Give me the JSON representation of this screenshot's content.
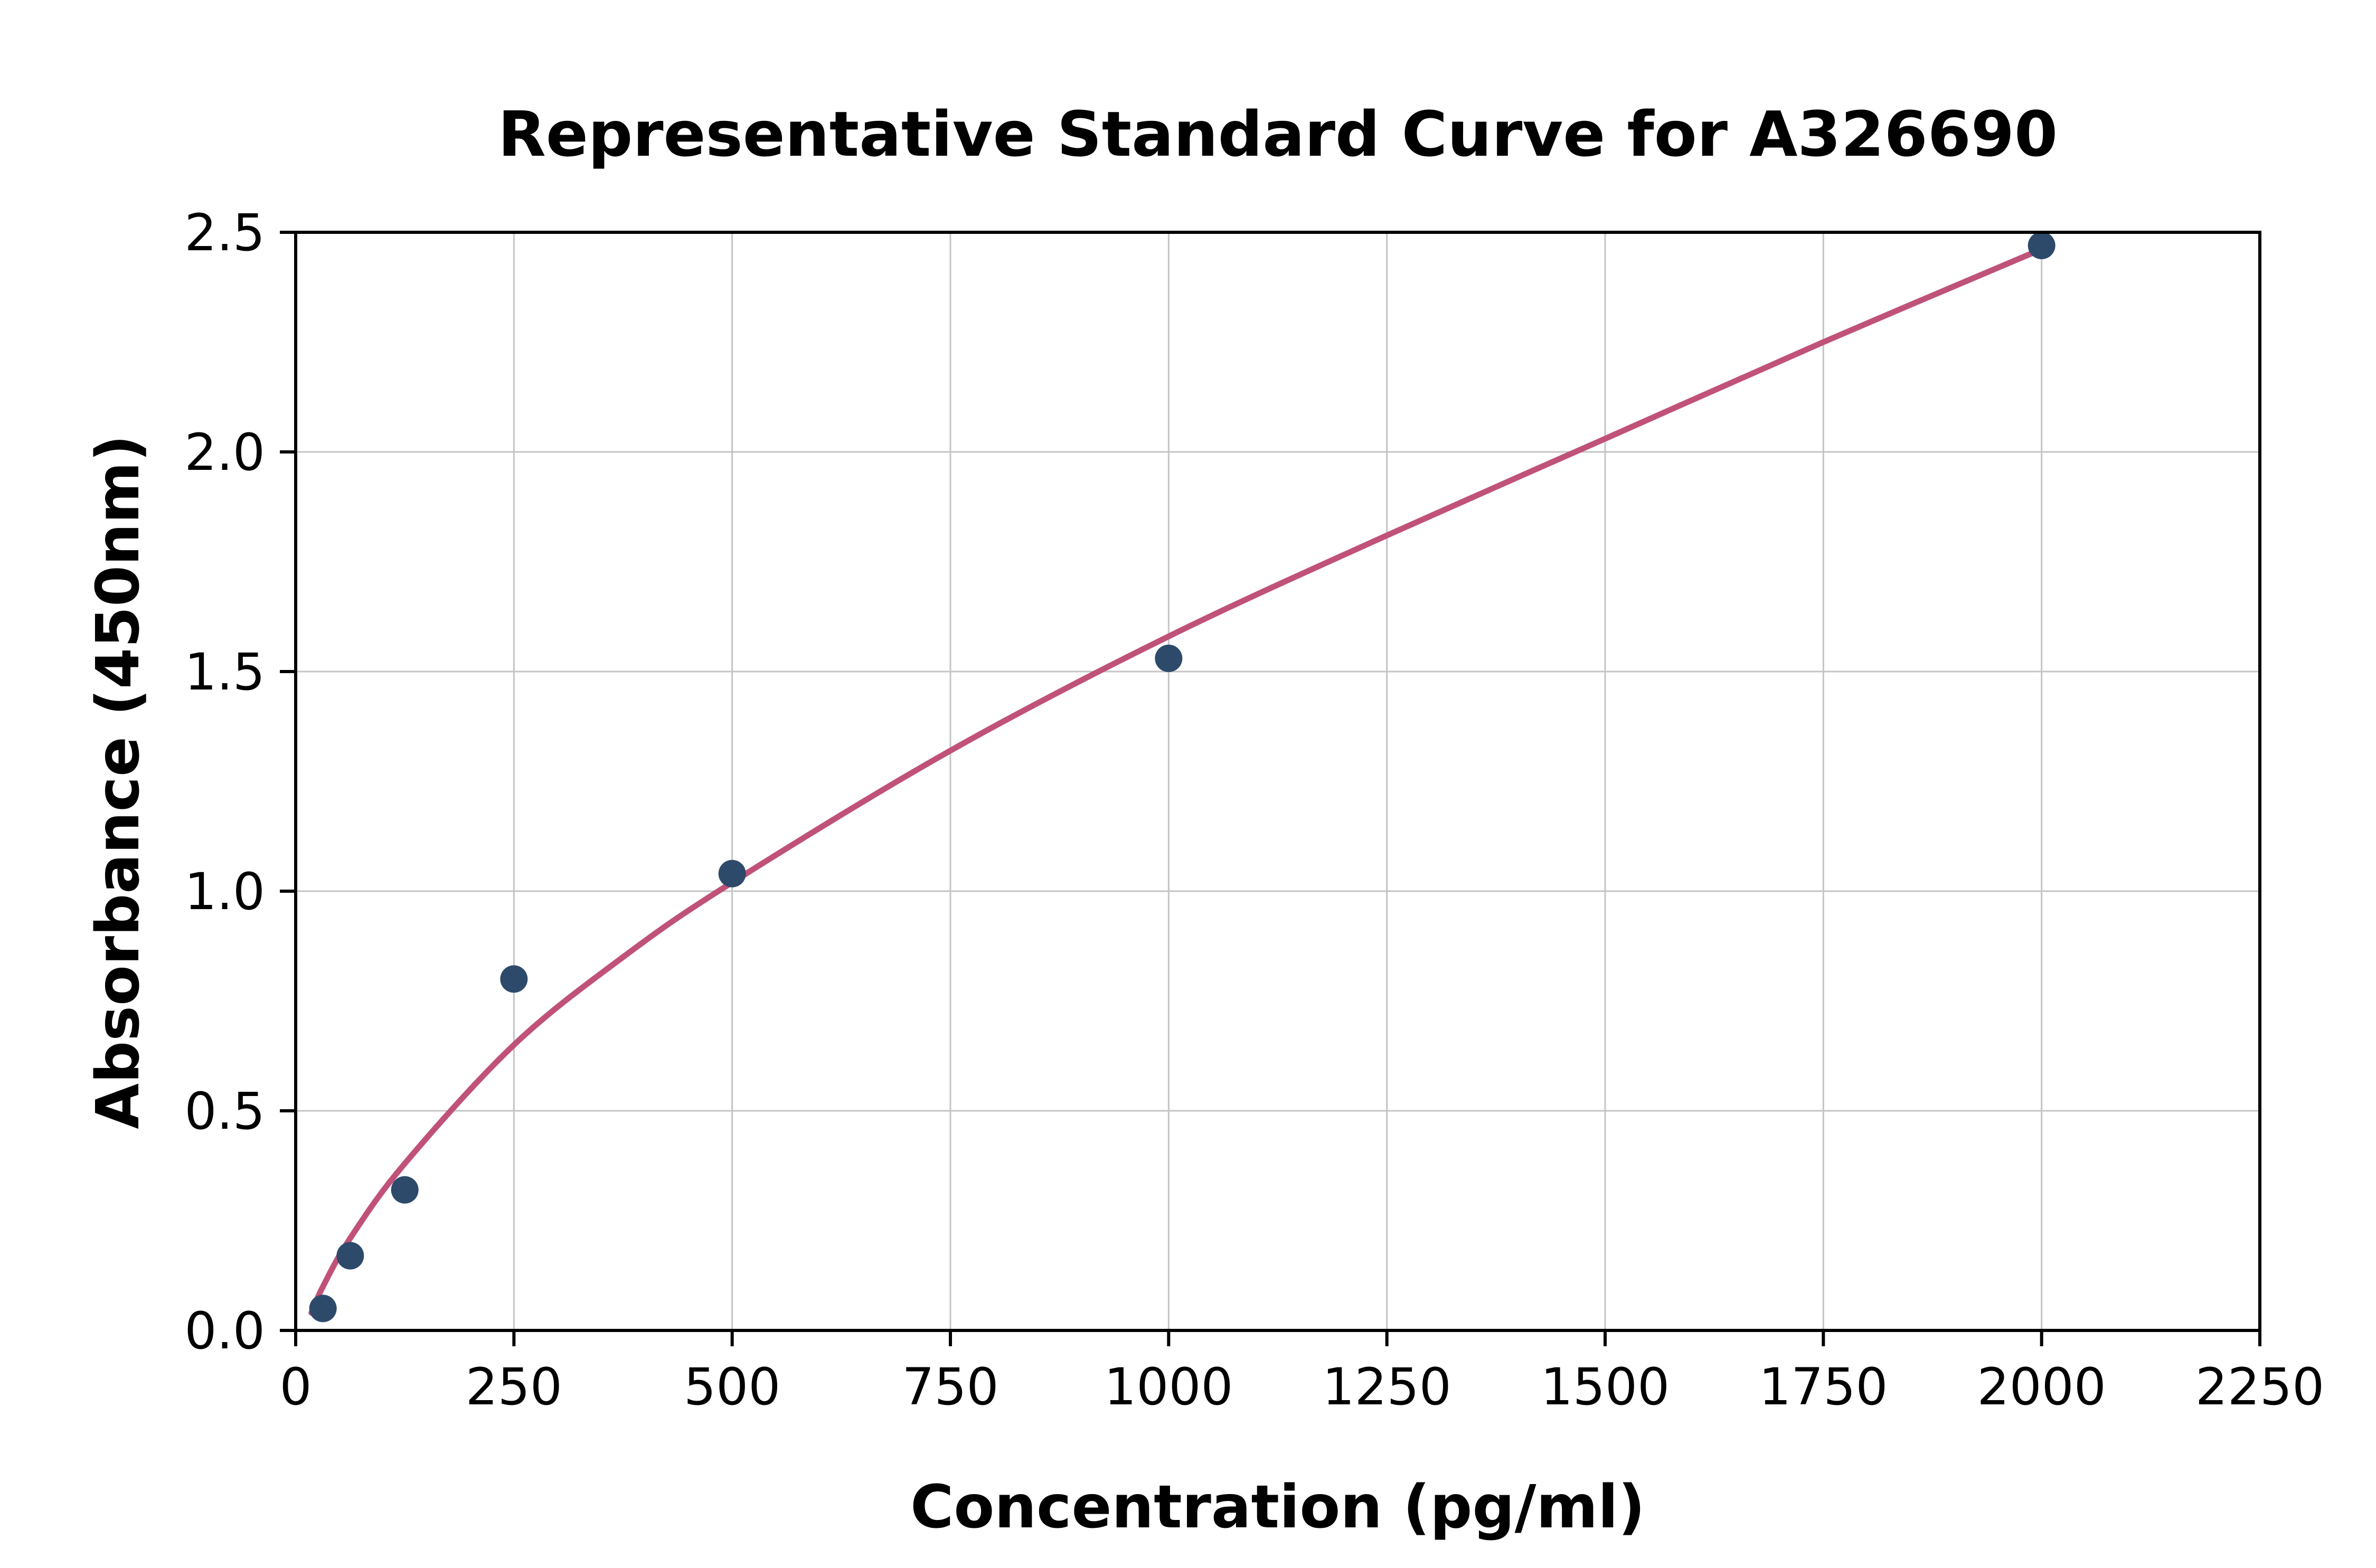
{
  "chart_data": {
    "type": "scatter",
    "title": "Representative Standard Curve for A326690",
    "xlabel": "Concentration (pg/ml)",
    "ylabel": "Absorbance (450nm)",
    "xlim": [
      0,
      2250
    ],
    "ylim": [
      0.0,
      2.5
    ],
    "x_ticks": [
      0,
      250,
      500,
      750,
      1000,
      1250,
      1500,
      1750,
      2000,
      2250
    ],
    "y_ticks": [
      0.0,
      0.5,
      1.0,
      1.5,
      2.0,
      2.5
    ],
    "y_tick_decimals": 1,
    "grid": true,
    "legend_position": "none",
    "series": [
      {
        "name": "standard-data-points",
        "type": "scatter",
        "x": [
          31.25,
          62.5,
          125,
          250,
          500,
          1000,
          2000
        ],
        "y": [
          0.05,
          0.17,
          0.32,
          0.8,
          1.04,
          1.53,
          2.47
        ],
        "color": "#2e4a6b",
        "marker_radius": 26
      },
      {
        "name": "fitted-standard-curve",
        "type": "line",
        "x": [
          18,
          31.25,
          62.5,
          125,
          250,
          375,
          500,
          750,
          1000,
          1250,
          1500,
          1750,
          2010
        ],
        "y": [
          0.04,
          0.1,
          0.21,
          0.38,
          0.65,
          0.85,
          1.02,
          1.32,
          1.58,
          1.81,
          2.03,
          2.25,
          2.47
        ],
        "color": "#c0527a",
        "line_width": 11
      }
    ],
    "colors": {
      "background": "#ffffff",
      "grid": "#c4c4c4",
      "axis": "#000000",
      "text": "#000000"
    }
  }
}
